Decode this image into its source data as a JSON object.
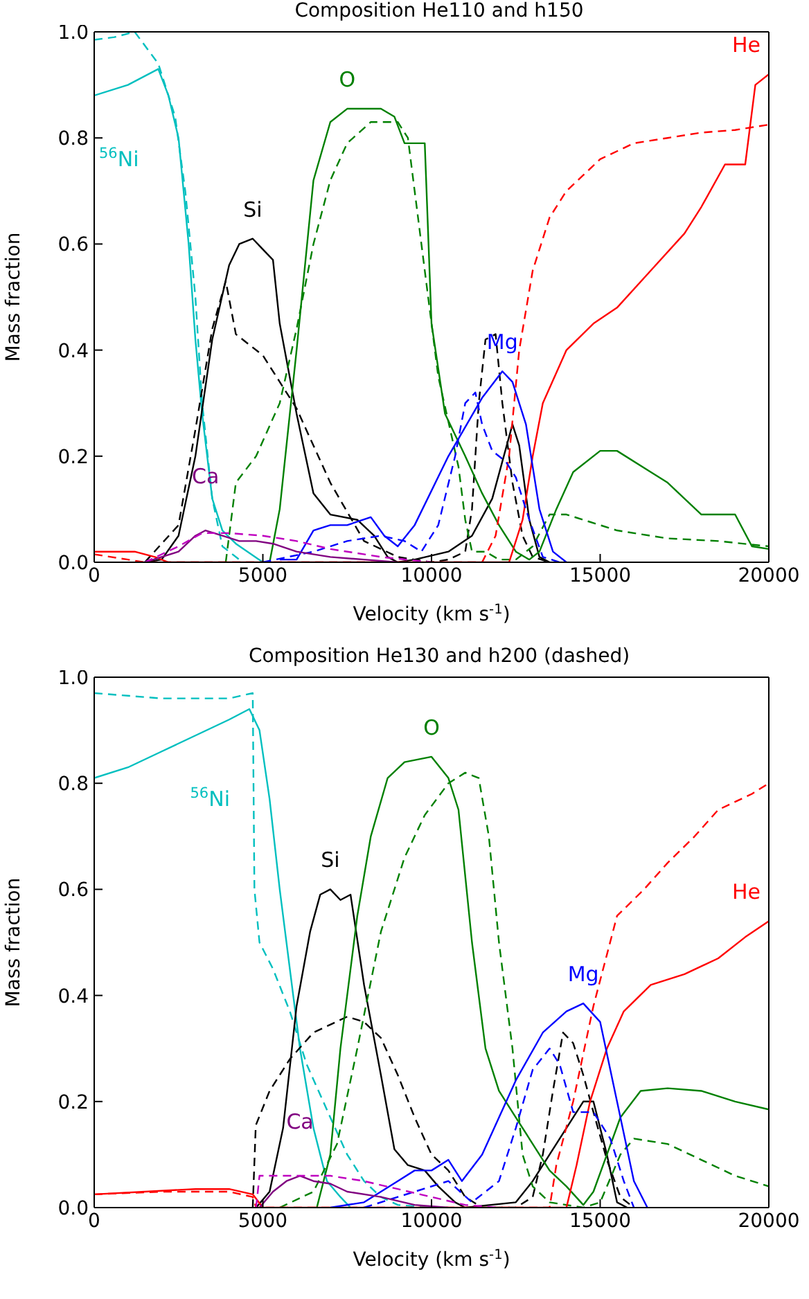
{
  "chart_data": [
    {
      "type": "line",
      "title": "Composition He110 and h150",
      "xlabel": "Velocity (km s$^{-1}$)",
      "ylabel": "Mass fraction",
      "xlim": [
        0,
        20000
      ],
      "ylim": [
        0,
        1.0
      ],
      "xticks": [
        0,
        5000,
        10000,
        15000,
        20000
      ],
      "yticks": [
        {
          "value": 0,
          "label": "0.0"
        },
        {
          "value": 0.2,
          "label": "0.2"
        },
        {
          "value": 0.4,
          "label": "0.4"
        },
        {
          "value": 0.6,
          "label": "0.6"
        },
        {
          "value": 0.8,
          "label": "0.8"
        },
        {
          "value": 1.0,
          "label": "1.0"
        }
      ],
      "legend": false,
      "marker": "none",
      "series": [
        {
          "name": "$^{56}$Ni",
          "color": "#00bfbf",
          "line_style": "solid",
          "x": [
            0,
            1000,
            1900,
            2200,
            2500,
            2800,
            3000,
            3200,
            3500,
            3800,
            4200,
            5000
          ],
          "values": [
            0.88,
            0.9,
            0.93,
            0.88,
            0.8,
            0.6,
            0.42,
            0.28,
            0.12,
            0.06,
            0.035,
            0.0
          ]
        },
        {
          "color": "#00bfbf",
          "line_style": "dashed",
          "x": [
            0,
            600,
            1200,
            1900,
            2400,
            2700,
            3000,
            3200,
            3500,
            3800,
            4300
          ],
          "values": [
            0.985,
            0.99,
            1.0,
            0.94,
            0.84,
            0.7,
            0.5,
            0.3,
            0.12,
            0.03,
            0.005
          ]
        },
        {
          "name": "Si",
          "color": "#000000",
          "line_style": "solid",
          "x": [
            1500,
            2000,
            2500,
            3000,
            3500,
            4000,
            4300,
            4700,
            5000,
            5300,
            5500,
            6000,
            6500,
            7000,
            7800,
            8300,
            8700,
            9000,
            9500,
            10500,
            11200,
            11800,
            12400,
            12600,
            12900,
            13200,
            13500
          ],
          "values": [
            0,
            0.005,
            0.05,
            0.2,
            0.42,
            0.56,
            0.6,
            0.61,
            0.59,
            0.57,
            0.45,
            0.28,
            0.13,
            0.09,
            0.08,
            0.05,
            0.01,
            0,
            0.005,
            0.02,
            0.05,
            0.12,
            0.26,
            0.22,
            0.08,
            0.01,
            0
          ]
        },
        {
          "color": "#000000",
          "line_style": "dashed",
          "x": [
            1500,
            2500,
            3000,
            3500,
            3900,
            4200,
            5000,
            6000,
            7000,
            8000,
            9000,
            10000,
            10500,
            11000,
            11200,
            11400,
            11600,
            11900,
            12100,
            12400,
            12700,
            13000,
            13500
          ],
          "values": [
            0,
            0.07,
            0.25,
            0.44,
            0.53,
            0.43,
            0.39,
            0.29,
            0.15,
            0.04,
            0.01,
            0,
            0.005,
            0.02,
            0.1,
            0.3,
            0.42,
            0.43,
            0.3,
            0.15,
            0.05,
            0.01,
            0
          ]
        },
        {
          "name": "O",
          "color": "#008000",
          "line_style": "solid",
          "x": [
            5200,
            5500,
            6000,
            6500,
            7000,
            7500,
            8500,
            8900,
            9200,
            9800,
            10000,
            10400,
            11000,
            11500,
            12000,
            12500,
            12900,
            13200,
            13700,
            14200,
            15000,
            15500,
            16500,
            17000,
            17500,
            18000,
            19000,
            19500,
            20000
          ],
          "values": [
            0,
            0.1,
            0.4,
            0.72,
            0.83,
            0.855,
            0.855,
            0.84,
            0.79,
            0.79,
            0.45,
            0.28,
            0.2,
            0.13,
            0.07,
            0.02,
            0.005,
            0.02,
            0.1,
            0.17,
            0.21,
            0.21,
            0.17,
            0.15,
            0.12,
            0.09,
            0.09,
            0.03,
            0.025
          ]
        },
        {
          "color": "#008000",
          "line_style": "dashed",
          "x": [
            3900,
            4200,
            4800,
            5500,
            6000,
            6500,
            7000,
            7500,
            8200,
            9000,
            9300,
            9700,
            10200,
            10800,
            11000,
            11200,
            11600,
            12000,
            12500,
            13000,
            13500,
            14000,
            14500,
            15500,
            17000,
            18500,
            20000
          ],
          "values": [
            0,
            0.15,
            0.2,
            0.3,
            0.44,
            0.6,
            0.72,
            0.79,
            0.83,
            0.83,
            0.8,
            0.6,
            0.35,
            0.18,
            0.08,
            0.02,
            0.02,
            0.005,
            0.005,
            0.03,
            0.09,
            0.09,
            0.08,
            0.06,
            0.045,
            0.04,
            0.03
          ]
        },
        {
          "name": "He",
          "color": "#ff0000",
          "line_style": "solid",
          "x": [
            0,
            1200,
            1800,
            2200,
            12300,
            12700,
            13000,
            13300,
            14000,
            14800,
            15500,
            16500,
            17500,
            18000,
            18700,
            19300,
            19600,
            20000
          ],
          "values": [
            0.02,
            0.02,
            0.01,
            0,
            0,
            0.08,
            0.2,
            0.3,
            0.4,
            0.45,
            0.48,
            0.55,
            0.62,
            0.67,
            0.75,
            0.75,
            0.9,
            0.92
          ]
        },
        {
          "color": "#ff0000",
          "line_style": "dashed",
          "x": [
            0,
            500,
            1000,
            1500,
            11500,
            11900,
            12300,
            12600,
            13000,
            13500,
            14000,
            15000,
            16000,
            17000,
            18000,
            19000,
            20000
          ],
          "values": [
            0.015,
            0.01,
            0.005,
            0,
            0,
            0.05,
            0.2,
            0.4,
            0.55,
            0.65,
            0.7,
            0.76,
            0.79,
            0.8,
            0.81,
            0.815,
            0.825
          ]
        },
        {
          "name": "Mg",
          "color": "#0000ff",
          "line_style": "solid",
          "x": [
            5500,
            6000,
            6500,
            7000,
            7500,
            8200,
            8600,
            9000,
            9500,
            10500,
            11500,
            12100,
            12400,
            12800,
            13200,
            13600,
            14000
          ],
          "values": [
            0.005,
            0.005,
            0.06,
            0.07,
            0.07,
            0.085,
            0.05,
            0.03,
            0.07,
            0.2,
            0.31,
            0.36,
            0.34,
            0.26,
            0.1,
            0.02,
            0
          ]
        },
        {
          "color": "#0000ff",
          "line_style": "dashed",
          "x": [
            5000,
            6500,
            7500,
            8500,
            9200,
            9700,
            10200,
            10700,
            11000,
            11300,
            11500,
            11800,
            12200,
            12500,
            12900,
            13300,
            13800
          ],
          "values": [
            0,
            0.02,
            0.04,
            0.05,
            0.04,
            0.02,
            0.07,
            0.2,
            0.3,
            0.32,
            0.26,
            0.21,
            0.19,
            0.16,
            0.08,
            0.01,
            0
          ]
        },
        {
          "name": "Ca",
          "color": "#800080",
          "line_style": "solid",
          "x": [
            1500,
            2500,
            3000,
            3300,
            3800,
            4300,
            4800,
            5300,
            6000,
            7000,
            8000,
            9000
          ],
          "values": [
            0,
            0.02,
            0.05,
            0.06,
            0.05,
            0.04,
            0.04,
            0.035,
            0.02,
            0.01,
            0.005,
            0
          ]
        },
        {
          "color": "#bf00bf",
          "line_style": "dashed",
          "x": [
            1500,
            2500,
            3200,
            4000,
            5000,
            6000,
            7000,
            8500,
            10000
          ],
          "values": [
            0,
            0.03,
            0.055,
            0.055,
            0.05,
            0.04,
            0.025,
            0.01,
            0
          ]
        }
      ]
    },
    {
      "type": "line",
      "title": "Composition He130 and h200 (dashed)",
      "xlabel": "Velocity (km s$^{-1}$)",
      "ylabel": "Mass fraction",
      "xlim": [
        0,
        20000
      ],
      "ylim": [
        0,
        1.0
      ],
      "xticks": [
        0,
        5000,
        10000,
        15000,
        20000
      ],
      "yticks": [
        {
          "value": 0,
          "label": "0.0"
        },
        {
          "value": 0.2,
          "label": "0.2"
        },
        {
          "value": 0.4,
          "label": "0.4"
        },
        {
          "value": 0.6,
          "label": "0.6"
        },
        {
          "value": 0.8,
          "label": "0.8"
        },
        {
          "value": 1.0,
          "label": "1.0"
        }
      ],
      "legend": false,
      "marker": "none",
      "series": [
        {
          "name": "$^{56}$Ni",
          "color": "#00bfbf",
          "line_style": "solid",
          "x": [
            0,
            1000,
            2000,
            3000,
            4000,
            4600,
            4900,
            5200,
            5500,
            5800,
            6100,
            6500,
            6900,
            7300,
            7600
          ],
          "values": [
            0.81,
            0.83,
            0.86,
            0.89,
            0.92,
            0.94,
            0.9,
            0.77,
            0.6,
            0.45,
            0.3,
            0.15,
            0.05,
            0.02,
            0
          ]
        },
        {
          "color": "#00bfbf",
          "line_style": "dashed",
          "x": [
            0,
            1000,
            2000,
            3000,
            4000,
            4700,
            4750,
            4900,
            5300,
            5800,
            6300,
            7000,
            7500,
            8000,
            8500,
            9000,
            10000
          ],
          "values": [
            0.97,
            0.965,
            0.96,
            0.96,
            0.96,
            0.97,
            0.6,
            0.5,
            0.45,
            0.37,
            0.27,
            0.17,
            0.1,
            0.05,
            0.02,
            0.005,
            0
          ]
        },
        {
          "name": "Si",
          "color": "#000000",
          "line_style": "solid",
          "x": [
            4800,
            5200,
            5600,
            6000,
            6400,
            6700,
            7000,
            7300,
            7600,
            8000,
            8500,
            8900,
            9300,
            9800,
            10200,
            10700,
            11000,
            12500,
            13000,
            13500,
            14000,
            14500,
            14800,
            15200,
            15500,
            15800
          ],
          "values": [
            0,
            0.03,
            0.15,
            0.38,
            0.52,
            0.59,
            0.6,
            0.58,
            0.59,
            0.42,
            0.25,
            0.11,
            0.08,
            0.07,
            0.04,
            0.01,
            0,
            0.01,
            0.05,
            0.1,
            0.15,
            0.2,
            0.2,
            0.1,
            0.01,
            0
          ]
        },
        {
          "color": "#000000",
          "line_style": "dashed",
          "x": [
            4700,
            4790,
            5200,
            5800,
            6500,
            7500,
            8000,
            8500,
            9000,
            9500,
            10000,
            10500,
            11000,
            11500,
            12500,
            13000,
            13300,
            13600,
            13900,
            14200,
            14500,
            14800,
            15200,
            15600,
            16000
          ],
          "values": [
            0,
            0.155,
            0.22,
            0.28,
            0.33,
            0.36,
            0.35,
            0.32,
            0.25,
            0.17,
            0.1,
            0.07,
            0.02,
            0,
            0,
            0.02,
            0.1,
            0.22,
            0.33,
            0.31,
            0.25,
            0.18,
            0.09,
            0.02,
            0
          ]
        },
        {
          "name": "O",
          "color": "#008000",
          "line_style": "solid",
          "x": [
            6600,
            7000,
            7300,
            7800,
            8200,
            8700,
            9200,
            10000,
            10500,
            10800,
            11200,
            11600,
            12000,
            12500,
            13000,
            13500,
            14000,
            14500,
            14800,
            15200,
            15600,
            16200,
            17000,
            18000,
            19000,
            20000
          ],
          "values": [
            0,
            0.1,
            0.3,
            0.55,
            0.7,
            0.81,
            0.84,
            0.85,
            0.81,
            0.75,
            0.5,
            0.3,
            0.22,
            0.17,
            0.12,
            0.07,
            0.04,
            0.005,
            0.03,
            0.1,
            0.17,
            0.22,
            0.225,
            0.22,
            0.2,
            0.185
          ]
        },
        {
          "color": "#008000",
          "line_style": "dashed",
          "x": [
            5500,
            6500,
            7200,
            7800,
            8500,
            9200,
            9800,
            10500,
            11000,
            11400,
            11700,
            12000,
            12400,
            12700,
            13000,
            13500,
            14500,
            15000,
            15600,
            16000,
            17000,
            18000,
            19000,
            20000
          ],
          "values": [
            0,
            0.03,
            0.12,
            0.3,
            0.52,
            0.66,
            0.74,
            0.8,
            0.82,
            0.81,
            0.7,
            0.5,
            0.3,
            0.1,
            0.04,
            0.01,
            0,
            0.01,
            0.1,
            0.13,
            0.12,
            0.09,
            0.06,
            0.04
          ]
        },
        {
          "name": "He",
          "color": "#ff0000",
          "line_style": "solid",
          "x": [
            0,
            1500,
            3000,
            4000,
            4700,
            5000,
            14000,
            14300,
            14700,
            15200,
            15700,
            16500,
            17500,
            18500,
            19300,
            20000
          ],
          "values": [
            0.025,
            0.03,
            0.035,
            0.035,
            0.025,
            0,
            0,
            0.08,
            0.2,
            0.3,
            0.37,
            0.42,
            0.44,
            0.47,
            0.51,
            0.54
          ]
        },
        {
          "color": "#ff0000",
          "line_style": "dashed",
          "x": [
            0,
            2000,
            4000,
            4700,
            4800,
            13500,
            13700,
            14200,
            14800,
            15500,
            16300,
            17000,
            17800,
            18500,
            19500,
            20000
          ],
          "values": [
            0.025,
            0.03,
            0.03,
            0.02,
            0,
            0,
            0.08,
            0.2,
            0.38,
            0.55,
            0.6,
            0.65,
            0.7,
            0.75,
            0.78,
            0.8
          ]
        },
        {
          "name": "Mg",
          "color": "#0000ff",
          "line_style": "solid",
          "x": [
            7000,
            8000,
            9000,
            9500,
            10000,
            10500,
            10900,
            11500,
            12500,
            13300,
            14000,
            14500,
            15000,
            15500,
            16000,
            16400
          ],
          "values": [
            0,
            0.01,
            0.05,
            0.07,
            0.07,
            0.09,
            0.05,
            0.1,
            0.24,
            0.33,
            0.37,
            0.385,
            0.35,
            0.2,
            0.05,
            0
          ]
        },
        {
          "color": "#0000ff",
          "line_style": "dashed",
          "x": [
            8000,
            9000,
            10500,
            11200,
            12000,
            12500,
            13000,
            13500,
            13800,
            14200,
            14800,
            15300,
            15700,
            16000
          ],
          "values": [
            0,
            0.02,
            0.05,
            0.01,
            0.05,
            0.15,
            0.26,
            0.3,
            0.27,
            0.18,
            0.18,
            0.13,
            0.05,
            0
          ]
        },
        {
          "name": "Ca",
          "color": "#800080",
          "line_style": "solid",
          "x": [
            4900,
            5300,
            5700,
            6100,
            6500,
            7000,
            7500,
            8500,
            9500,
            10500
          ],
          "values": [
            0,
            0.03,
            0.05,
            0.06,
            0.05,
            0.045,
            0.03,
            0.02,
            0.005,
            0
          ]
        },
        {
          "color": "#bf00bf",
          "line_style": "dashed",
          "x": [
            4800,
            4900,
            6000,
            7000,
            8000,
            9000,
            10000,
            11000,
            12000
          ],
          "values": [
            0,
            0.06,
            0.06,
            0.06,
            0.05,
            0.035,
            0.02,
            0.005,
            0
          ]
        }
      ]
    }
  ]
}
